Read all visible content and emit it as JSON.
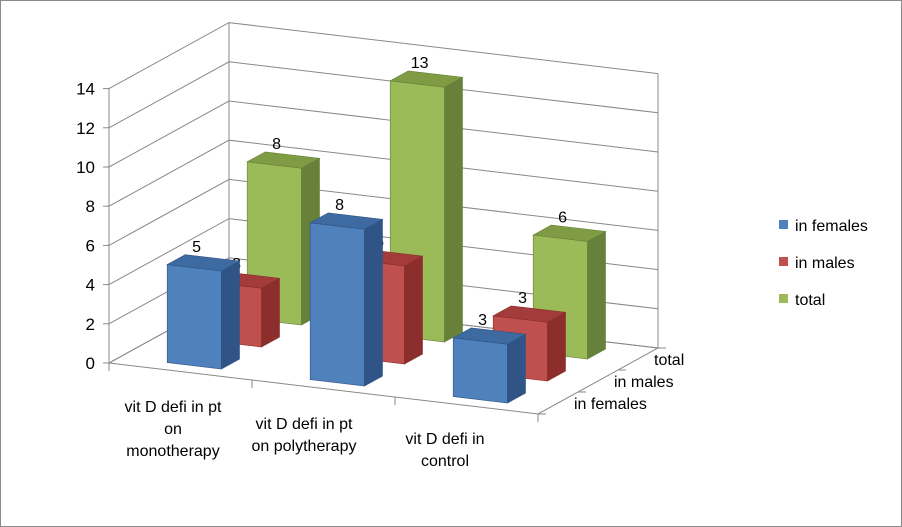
{
  "chart_data": {
    "type": "bar",
    "subtype": "3d-column",
    "categories": [
      "vit D defi in pt on monotherapy",
      "vit D defi in pt on polytherapy",
      "vit D defi in control"
    ],
    "category_lines": [
      [
        "vit D defi in pt",
        "on",
        "monotherapy"
      ],
      [
        "vit D defi in pt",
        "on polytherapy"
      ],
      [
        "vit D defi in",
        "control"
      ]
    ],
    "series": [
      {
        "name": "in females",
        "values": [
          5,
          8,
          3
        ],
        "color": "#4F81BD",
        "side": "#2F5485",
        "top": "#3D6AA0"
      },
      {
        "name": "in males",
        "values": [
          3,
          5,
          3
        ],
        "color": "#C0504D",
        "side": "#8B2E2C",
        "top": "#A23B39"
      },
      {
        "name": "total",
        "values": [
          8,
          13,
          6
        ],
        "color": "#9BBB59",
        "side": "#67803A",
        "top": "#7F9C45"
      }
    ],
    "depth_labels": [
      "in females",
      "in males",
      "total"
    ],
    "ylim": [
      0,
      14
    ],
    "yticks": [
      0,
      2,
      4,
      6,
      8,
      10,
      12,
      14
    ],
    "grid": true,
    "legend": "right"
  }
}
